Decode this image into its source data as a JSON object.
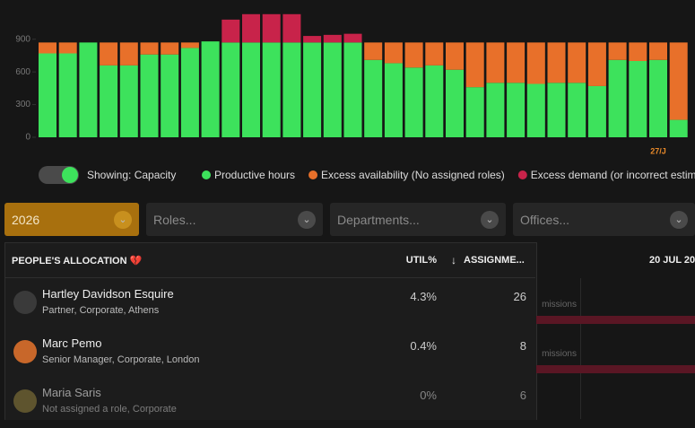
{
  "chart_data": {
    "type": "bar",
    "stacked": true,
    "categories": [
      null,
      null,
      null,
      null,
      null,
      null,
      null,
      null,
      null,
      null,
      null,
      null,
      null,
      null,
      null,
      null,
      null,
      null,
      null,
      null,
      null,
      null,
      null,
      null,
      null,
      null,
      null,
      null,
      null,
      null,
      "27/J",
      null
    ],
    "highlight_category_color": "#e8892a",
    "series": [
      {
        "name": "Productive hours",
        "color": "#3de25c",
        "values": [
          770,
          770,
          870,
          660,
          660,
          760,
          760,
          820,
          880,
          870,
          870,
          870,
          870,
          870,
          870,
          870,
          710,
          680,
          640,
          660,
          620,
          460,
          500,
          500,
          490,
          500,
          500,
          470,
          710,
          700,
          710,
          160
        ]
      },
      {
        "name": "Excess availability (No assigned roles)",
        "color": "#e8702a",
        "values": [
          100,
          100,
          0,
          210,
          210,
          110,
          110,
          50,
          0,
          0,
          0,
          0,
          0,
          0,
          0,
          0,
          160,
          190,
          230,
          210,
          250,
          410,
          370,
          370,
          380,
          370,
          370,
          400,
          160,
          170,
          160,
          710
        ]
      },
      {
        "name": "Excess demand (or incorrect estimations",
        "color": "#c8234a",
        "values": [
          0,
          0,
          0,
          0,
          0,
          0,
          0,
          0,
          0,
          210,
          260,
          260,
          260,
          60,
          70,
          80,
          0,
          0,
          0,
          0,
          0,
          0,
          0,
          0,
          0,
          0,
          0,
          0,
          0,
          0,
          0,
          0
        ]
      }
    ],
    "ylim": [
      0,
      1260
    ],
    "yticks": [
      0,
      300,
      600,
      900
    ]
  },
  "toggle": {
    "label": "Showing: Capacity"
  },
  "filters": {
    "year": "2026",
    "roles": "Roles...",
    "departments": "Departments...",
    "offices": "Offices..."
  },
  "table": {
    "title": "PEOPLE'S ALLOCATION 💔",
    "util_header": "UTIL%",
    "assign_header": "ASSIGNME...",
    "date_header": "20 JUL 20",
    "rows": [
      {
        "name": "Hartley Davidson Esquire",
        "subtitle": "Partner, Corporate, Athens",
        "util": "4.3%",
        "assignments": 26,
        "timeline": "missions"
      },
      {
        "name": "Marc Pemo",
        "subtitle": "Senior Manager, Corporate, London",
        "util": "0.4%",
        "assignments": 8,
        "timeline": "missions"
      },
      {
        "name": "Maria Saris",
        "subtitle": "Not assigned a role, Corporate",
        "util": "0%",
        "assignments": 6
      }
    ]
  }
}
